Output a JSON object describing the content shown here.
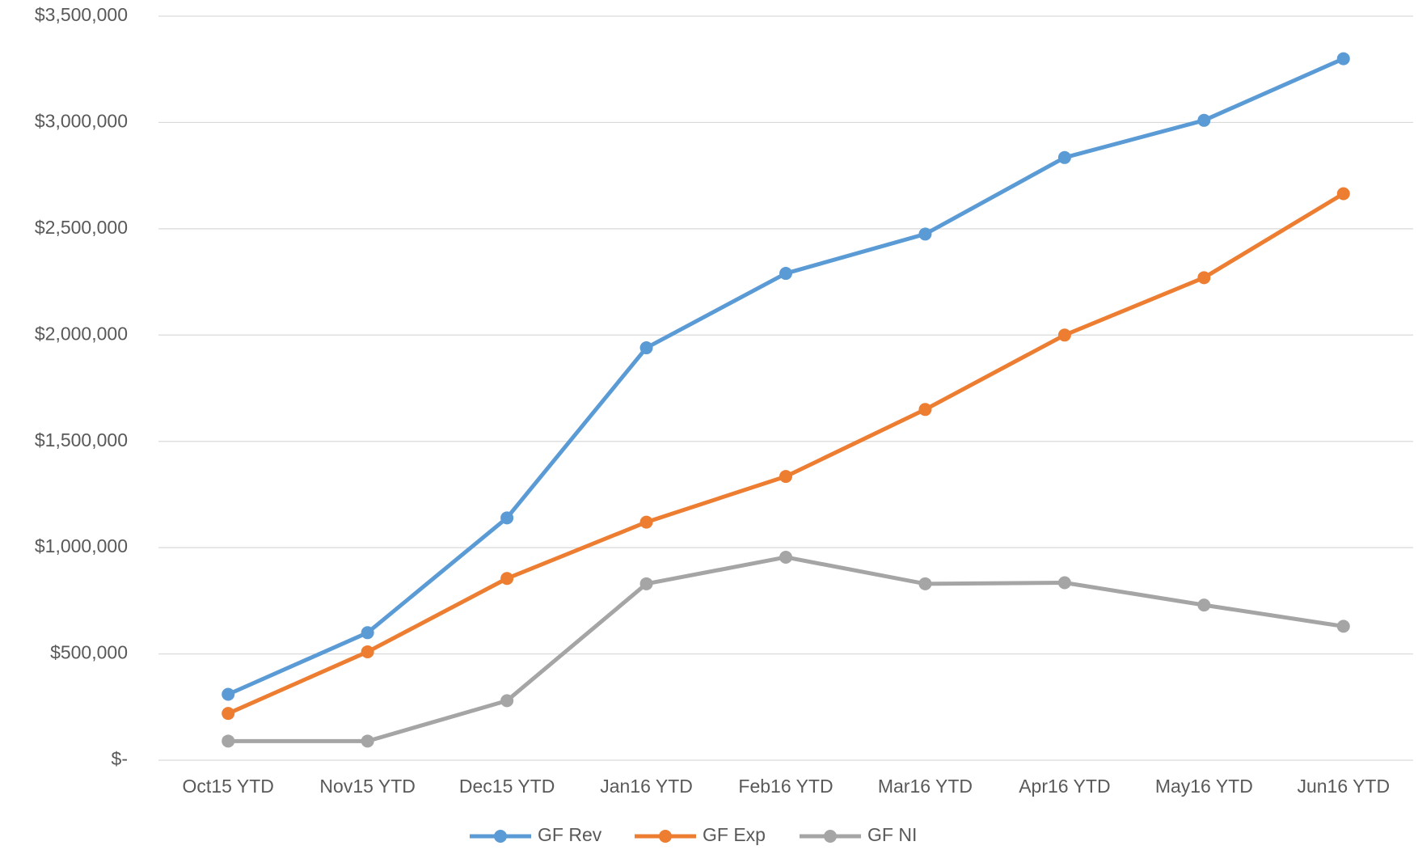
{
  "chart_data": {
    "type": "line",
    "categories": [
      "Oct15 YTD",
      "Nov15 YTD",
      "Dec15 YTD",
      "Jan16 YTD",
      "Feb16 YTD",
      "Mar16 YTD",
      "Apr16 YTD",
      "May16 YTD",
      "Jun16 YTD"
    ],
    "series": [
      {
        "name": "GF Rev",
        "color": "#5b9bd5",
        "values": [
          310000,
          600000,
          1140000,
          1940000,
          2290000,
          2475000,
          2835000,
          3010000,
          3300000
        ]
      },
      {
        "name": "GF Exp",
        "color": "#ed7d31",
        "values": [
          220000,
          510000,
          855000,
          1120000,
          1335000,
          1650000,
          2000000,
          2270000,
          2665000
        ]
      },
      {
        "name": "GF NI",
        "color": "#a5a5a5",
        "values": [
          90000,
          90000,
          280000,
          830000,
          955000,
          830000,
          835000,
          730000,
          630000
        ]
      }
    ],
    "ylim": [
      0,
      3500000
    ],
    "yticks": [
      {
        "value": 0,
        "label": "$-"
      },
      {
        "value": 500000,
        "label": "$500,000"
      },
      {
        "value": 1000000,
        "label": "$1,000,000"
      },
      {
        "value": 1500000,
        "label": "$1,500,000"
      },
      {
        "value": 2000000,
        "label": "$2,000,000"
      },
      {
        "value": 2500000,
        "label": "$2,500,000"
      },
      {
        "value": 3000000,
        "label": "$3,000,000"
      },
      {
        "value": 3500000,
        "label": "$3,500,000"
      }
    ],
    "grid": true,
    "legend": "bottom"
  }
}
